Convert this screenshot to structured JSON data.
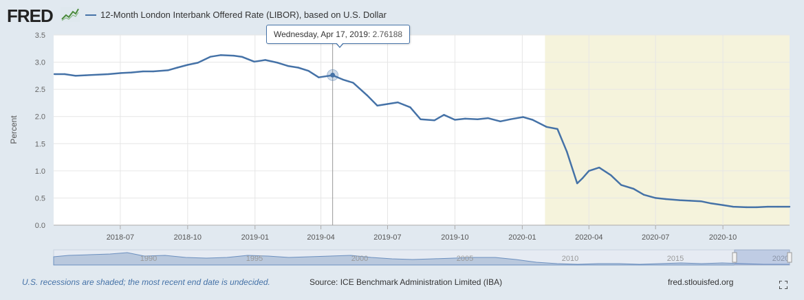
{
  "header": {
    "logo_text": "FRED",
    "legend_label": "12-Month London Interbank Offered Rate (LIBOR), based on U.S. Dollar",
    "series_color": "#4572a7"
  },
  "tooltip": {
    "date": "Wednesday, Apr 17, 2019:",
    "value": "2.76188"
  },
  "footer": {
    "recession_note": "U.S. recessions are shaded; the most recent end date is undecided.",
    "source": "Source: ICE Benchmark Administration Limited (IBA)",
    "site": "fred.stlouisfed.org"
  },
  "navigator": {
    "year_labels": [
      "1990",
      "1995",
      "2000",
      "2005",
      "2010",
      "2015",
      "2020"
    ]
  },
  "chart_data": {
    "type": "line",
    "ylabel": "Percent",
    "xlabel": "",
    "ylim": [
      0,
      3.5
    ],
    "yticks": [
      "0.0",
      "0.5",
      "1.0",
      "1.5",
      "2.0",
      "2.5",
      "3.0",
      "3.5"
    ],
    "xlim": [
      "2018-04-01",
      "2020-12-31"
    ],
    "xticks": [
      {
        "date": "2018-07-01",
        "label": "2018-07"
      },
      {
        "date": "2018-10-01",
        "label": "2018-10"
      },
      {
        "date": "2019-01-01",
        "label": "2019-01"
      },
      {
        "date": "2019-04-01",
        "label": "2019-04"
      },
      {
        "date": "2019-07-01",
        "label": "2019-07"
      },
      {
        "date": "2019-10-01",
        "label": "2019-10"
      },
      {
        "date": "2020-01-01",
        "label": "2020-01"
      },
      {
        "date": "2020-04-01",
        "label": "2020-04"
      },
      {
        "date": "2020-07-01",
        "label": "2020-07"
      },
      {
        "date": "2020-10-01",
        "label": "2020-10"
      }
    ],
    "recession": {
      "start": "2020-02-01",
      "end": "2020-12-31",
      "color": "#f5f3dc"
    },
    "grid": true,
    "series": [
      {
        "color": "#4572a7",
        "points": [
          [
            "2018-04-02",
            2.78
          ],
          [
            "2018-04-16",
            2.78
          ],
          [
            "2018-05-01",
            2.75
          ],
          [
            "2018-05-15",
            2.76
          ],
          [
            "2018-06-01",
            2.77
          ],
          [
            "2018-06-15",
            2.78
          ],
          [
            "2018-07-02",
            2.8
          ],
          [
            "2018-07-16",
            2.81
          ],
          [
            "2018-08-01",
            2.83
          ],
          [
            "2018-08-15",
            2.83
          ],
          [
            "2018-09-04",
            2.85
          ],
          [
            "2018-09-17",
            2.9
          ],
          [
            "2018-10-01",
            2.95
          ],
          [
            "2018-10-15",
            2.99
          ],
          [
            "2018-11-01",
            3.1
          ],
          [
            "2018-11-15",
            3.13
          ],
          [
            "2018-12-03",
            3.12
          ],
          [
            "2018-12-14",
            3.1
          ],
          [
            "2018-12-31",
            3.01
          ],
          [
            "2019-01-15",
            3.04
          ],
          [
            "2019-02-01",
            2.99
          ],
          [
            "2019-02-15",
            2.93
          ],
          [
            "2019-03-01",
            2.9
          ],
          [
            "2019-03-15",
            2.84
          ],
          [
            "2019-03-29",
            2.72
          ],
          [
            "2019-04-17",
            2.76
          ],
          [
            "2019-05-01",
            2.68
          ],
          [
            "2019-05-15",
            2.62
          ],
          [
            "2019-06-03",
            2.39
          ],
          [
            "2019-06-17",
            2.2
          ],
          [
            "2019-07-01",
            2.23
          ],
          [
            "2019-07-15",
            2.26
          ],
          [
            "2019-08-01",
            2.17
          ],
          [
            "2019-08-15",
            1.95
          ],
          [
            "2019-09-03",
            1.93
          ],
          [
            "2019-09-16",
            2.03
          ],
          [
            "2019-10-01",
            1.94
          ],
          [
            "2019-10-15",
            1.96
          ],
          [
            "2019-11-01",
            1.95
          ],
          [
            "2019-11-15",
            1.97
          ],
          [
            "2019-12-02",
            1.91
          ],
          [
            "2019-12-16",
            1.95
          ],
          [
            "2020-01-02",
            1.99
          ],
          [
            "2020-01-15",
            1.94
          ],
          [
            "2020-02-03",
            1.81
          ],
          [
            "2020-02-18",
            1.77
          ],
          [
            "2020-03-02",
            1.35
          ],
          [
            "2020-03-16",
            0.77
          ],
          [
            "2020-03-23",
            0.86
          ],
          [
            "2020-04-01",
            1.0
          ],
          [
            "2020-04-15",
            1.06
          ],
          [
            "2020-05-01",
            0.92
          ],
          [
            "2020-05-15",
            0.74
          ],
          [
            "2020-06-01",
            0.67
          ],
          [
            "2020-06-15",
            0.56
          ],
          [
            "2020-07-01",
            0.5
          ],
          [
            "2020-07-15",
            0.48
          ],
          [
            "2020-08-03",
            0.46
          ],
          [
            "2020-08-17",
            0.45
          ],
          [
            "2020-09-01",
            0.44
          ],
          [
            "2020-09-15",
            0.4
          ],
          [
            "2020-10-01",
            0.37
          ],
          [
            "2020-10-15",
            0.34
          ],
          [
            "2020-11-02",
            0.33
          ],
          [
            "2020-11-16",
            0.33
          ],
          [
            "2020-12-01",
            0.34
          ],
          [
            "2020-12-15",
            0.34
          ],
          [
            "2020-12-31",
            0.34
          ]
        ]
      }
    ],
    "highlight": {
      "date": "2019-04-17",
      "value": 2.76188
    }
  }
}
